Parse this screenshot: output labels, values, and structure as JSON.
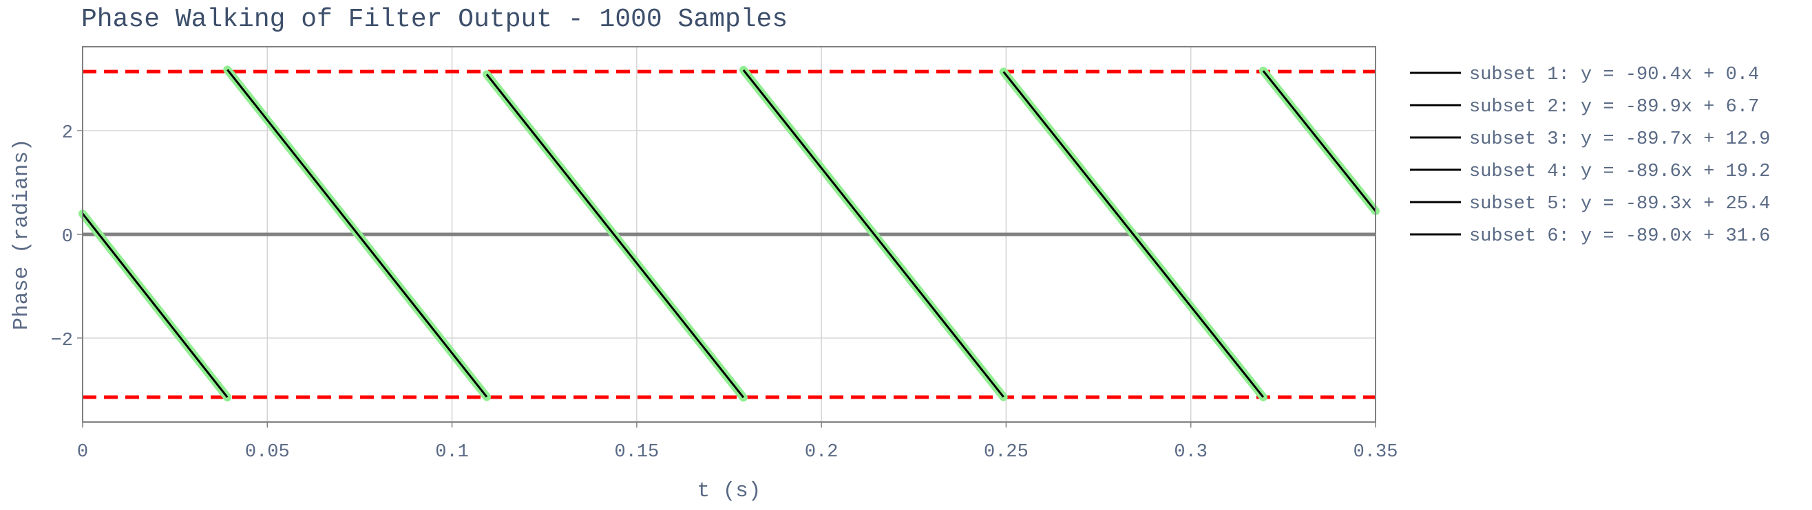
{
  "chart_data": {
    "type": "line",
    "title": "Phase Walking of Filter Output - 1000 Samples",
    "xlabel": "t (s)",
    "ylabel": "Phase (radians)",
    "xlim": [
      0,
      0.35
    ],
    "ylim": [
      -3.62,
      3.62
    ],
    "xticks": [
      0,
      0.05,
      0.1,
      0.15,
      0.2,
      0.25,
      0.3,
      0.35
    ],
    "xtick_labels": [
      "0",
      "0.05",
      "0.1",
      "0.15",
      "0.2",
      "0.25",
      "0.3",
      "0.35"
    ],
    "yticks": [
      -2,
      0,
      2
    ],
    "ytick_labels": [
      "−2",
      "0",
      "2"
    ],
    "grid": true,
    "legend_position": "right",
    "colors": {
      "data": "#90ee90",
      "fit": "#000000",
      "bounds": "#ff0000",
      "zero_line": "#808080",
      "text": "#5a6a85",
      "title": "#3d4f6b",
      "grid": "#d3d3d3",
      "frame": "#808080"
    },
    "horizontal_lines": [
      {
        "y": 3.1416,
        "style": "dashed",
        "color": "#ff0000"
      },
      {
        "y": -3.1416,
        "style": "dashed",
        "color": "#ff0000"
      },
      {
        "y": 0,
        "style": "solid",
        "color": "#808080"
      }
    ],
    "series": [
      {
        "name": "subset 1: y = -90.4x + 0.4",
        "slope": -90.4,
        "intercept": 0.4,
        "x_range": [
          0,
          0.0392
        ]
      },
      {
        "name": "subset 2: y = -89.9x + 6.7",
        "slope": -89.9,
        "intercept": 6.7,
        "x_range": [
          0.0392,
          0.1094
        ]
      },
      {
        "name": "subset 3: y = -89.7x + 12.9",
        "slope": -89.7,
        "intercept": 12.9,
        "x_range": [
          0.1094,
          0.1789
        ]
      },
      {
        "name": "subset 4: y = -89.6x + 19.2",
        "slope": -89.6,
        "intercept": 19.2,
        "x_range": [
          0.1789,
          0.2493
        ]
      },
      {
        "name": "subset 5: y = -89.3x + 25.4",
        "slope": -89.3,
        "intercept": 25.4,
        "x_range": [
          0.2493,
          0.3196
        ]
      },
      {
        "name": "subset 6: y = -89.0x + 31.6",
        "slope": -89.0,
        "intercept": 31.6,
        "x_range": [
          0.3196,
          0.35
        ]
      }
    ]
  }
}
